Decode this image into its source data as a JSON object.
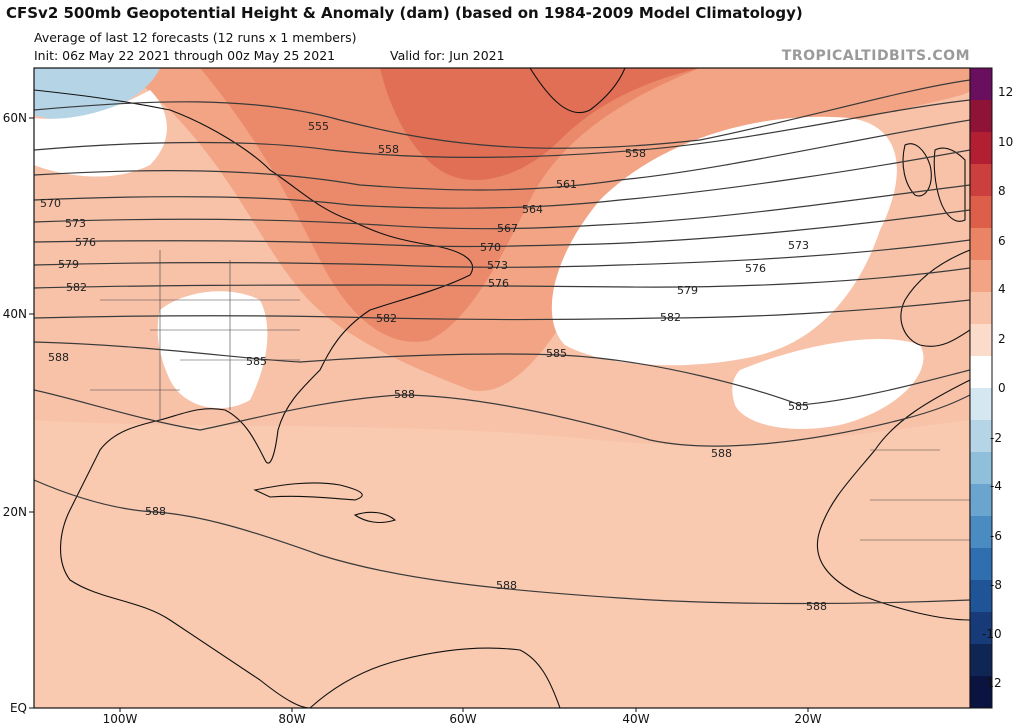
{
  "header": {
    "title": "CFSv2 500mb Geopotential Height & Anomaly (dam) (based on 1984-2009 Model Climatology)",
    "subtitle": "Average of last 12 forecasts (12 runs x 1 members)",
    "init": "Init: 06z May 22 2021 through 00z May 25 2021",
    "valid": "Valid for: Jun 2021",
    "brand": "TROPICALTIDBITS.COM"
  },
  "axes": {
    "lat_labels": [
      "60N",
      "40N",
      "20N",
      "EQ"
    ],
    "lon_labels": [
      "100W",
      "80W",
      "60W",
      "40W",
      "20W"
    ]
  },
  "colorbar": {
    "ticks": [
      "12",
      "10",
      "8",
      "6",
      "4",
      "2",
      "0",
      "-2",
      "-4",
      "-6",
      "-8",
      "-10",
      "-12"
    ],
    "colors": [
      "#6a0f5e",
      "#8f1237",
      "#b21f33",
      "#cc3f3f",
      "#dd5f4a",
      "#e98565",
      "#f2a484",
      "#f8c2a8",
      "#fbdbc9",
      "#ffffff",
      "#d5e8f2",
      "#b5d5e7",
      "#8fbfdb",
      "#6aa5cf",
      "#4a8cc2",
      "#2f6fb0",
      "#1f5496",
      "#173b78",
      "#0f2554",
      "#0b1440"
    ]
  },
  "contour_labels": [
    "555",
    "558",
    "558",
    "561",
    "564",
    "567",
    "570",
    "570",
    "573",
    "573",
    "573",
    "576",
    "576",
    "576",
    "579",
    "579",
    "582",
    "582",
    "582",
    "585",
    "585",
    "585",
    "588",
    "588",
    "588",
    "588",
    "588",
    "588"
  ]
}
